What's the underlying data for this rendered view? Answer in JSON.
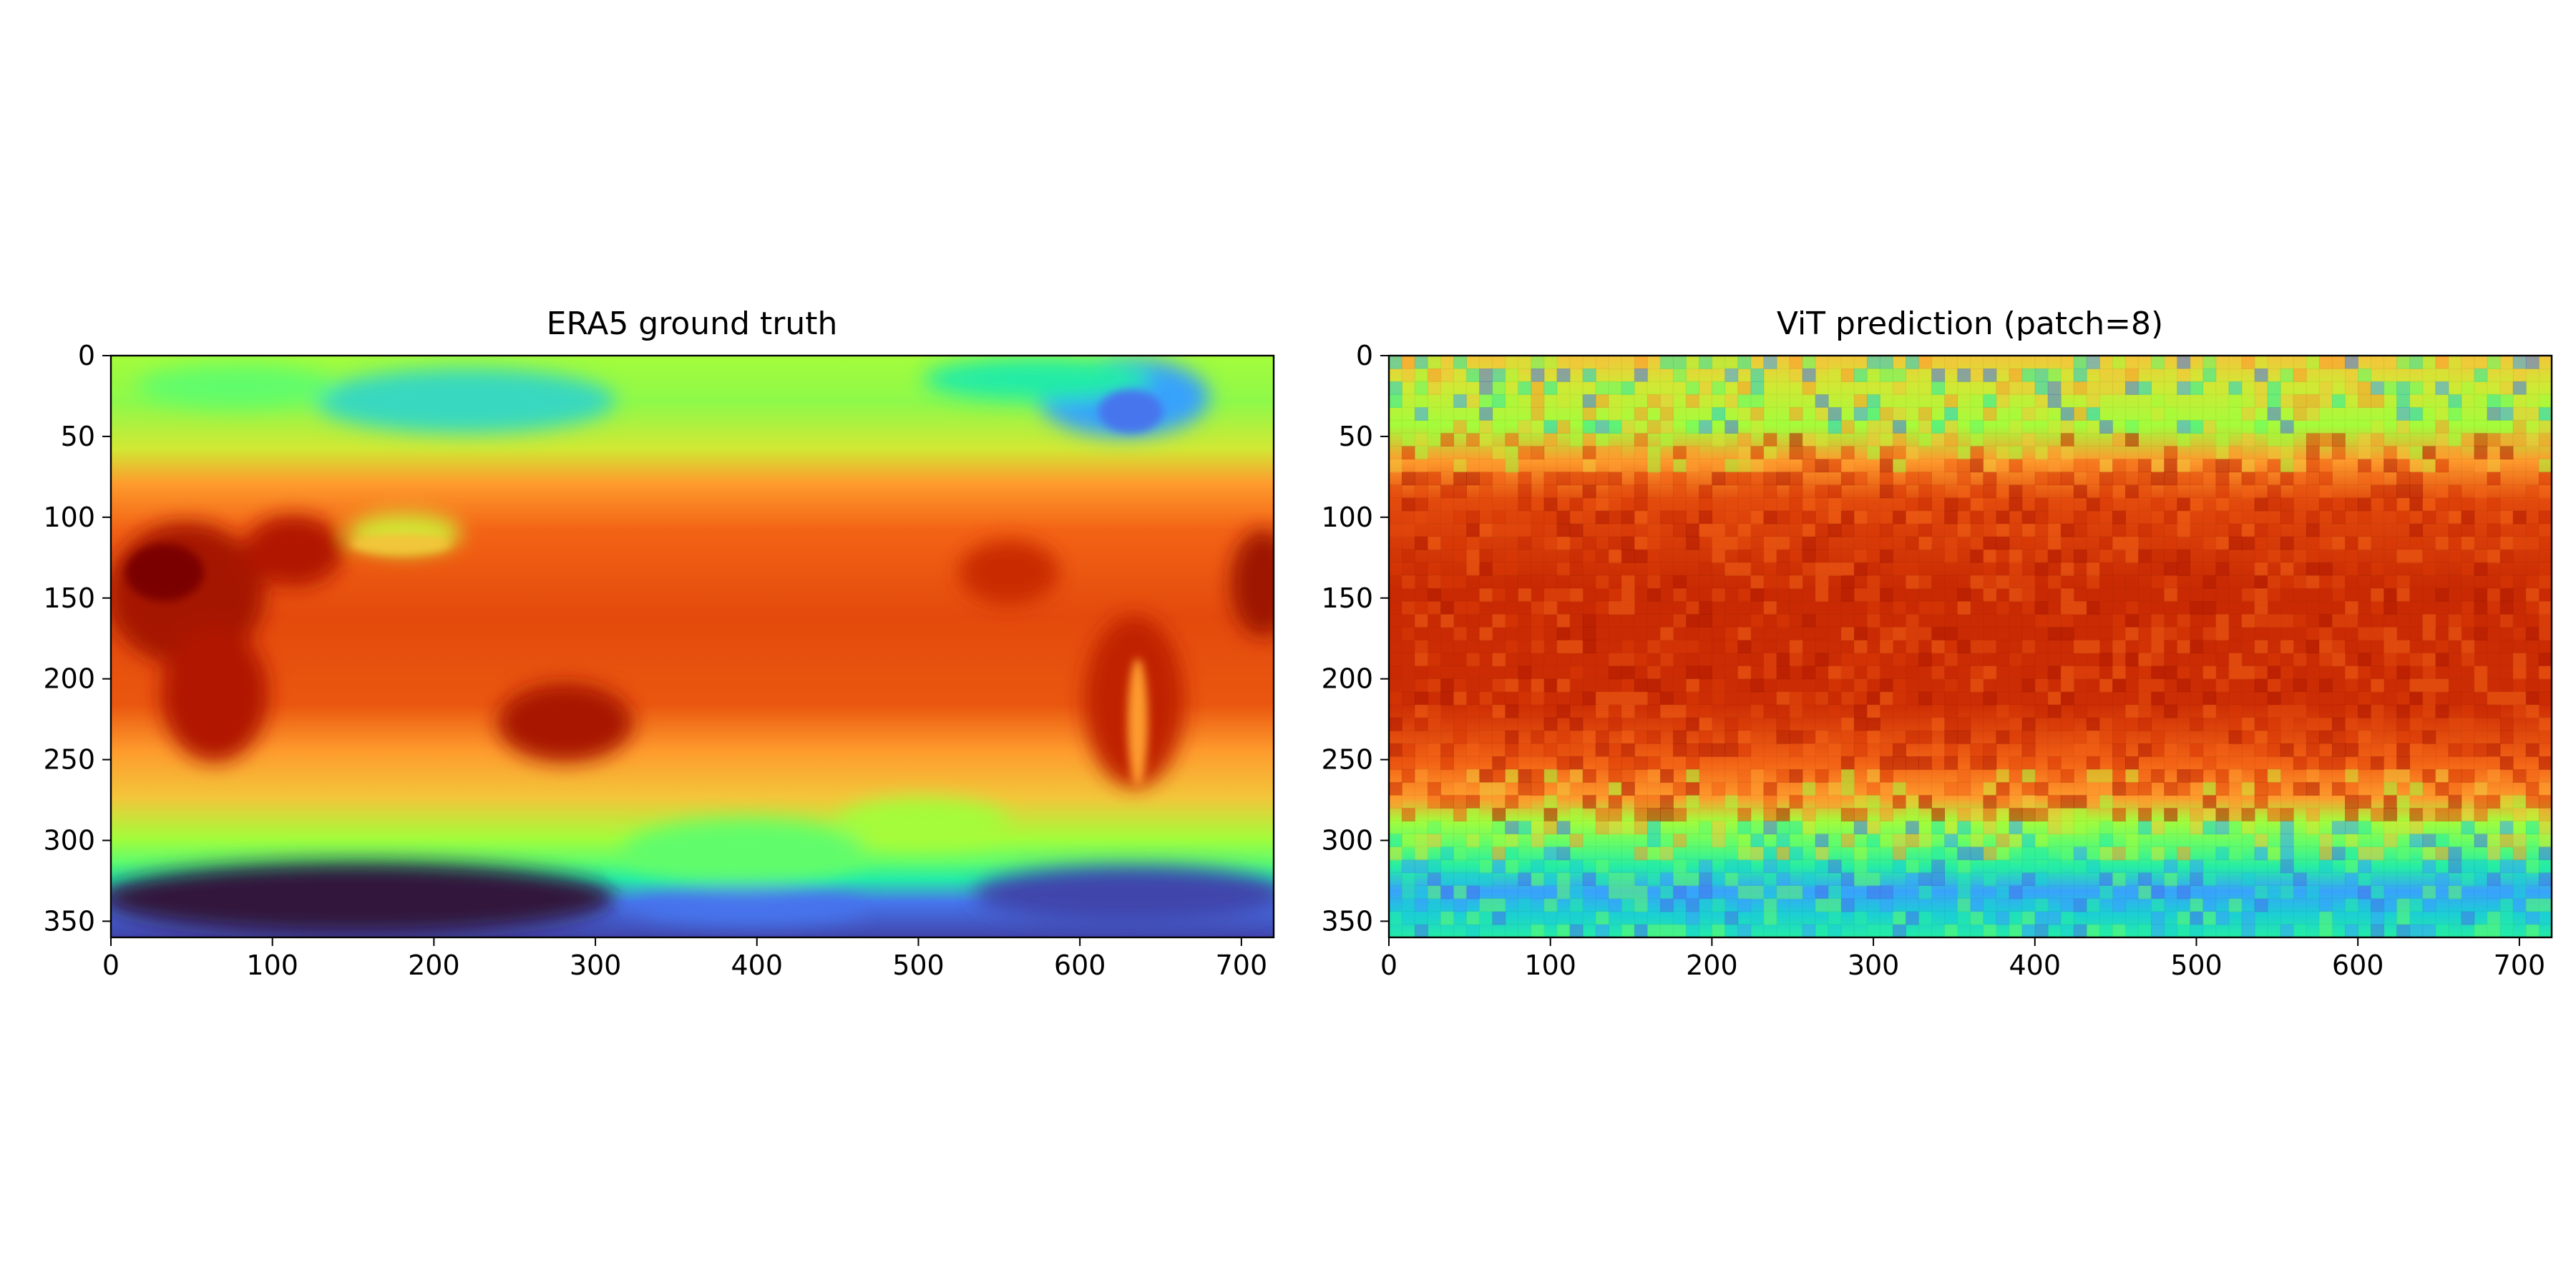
{
  "chart_data": [
    {
      "type": "heatmap",
      "title": "ERA5 ground truth",
      "xlim": [
        0,
        720
      ],
      "ylim": [
        360,
        0
      ],
      "x_ticks": [
        0,
        100,
        200,
        300,
        400,
        500,
        600,
        700
      ],
      "y_ticks": [
        0,
        50,
        100,
        150,
        200,
        250,
        300,
        350
      ],
      "colormap": "turbo",
      "grid": false,
      "field": "continuous global temperature field: coldest over Antarctica (rows ~320-360), cool over Arctic/Greenland (rows 0-50), warmest over Africa, India and Australia (rows 120-240); land outlines visible"
    },
    {
      "type": "heatmap",
      "title": "ViT prediction (patch=8)",
      "xlim": [
        0,
        720
      ],
      "ylim": [
        360,
        0
      ],
      "x_ticks": [
        0,
        100,
        200,
        300,
        400,
        500,
        600,
        700
      ],
      "y_ticks": [
        0,
        50,
        100,
        150,
        200,
        250,
        300,
        350
      ],
      "colormap": "turbo",
      "grid": false,
      "field": "blocky 8x8-pixel patch reconstruction of the same temperature field; warm tropical band rows ~80-260, cold polar bands rows ~300-360"
    }
  ],
  "colors": {
    "turbo": [
      "#30123b",
      "#4145ab",
      "#4675ed",
      "#39a2fc",
      "#1bcfd4",
      "#24eca6",
      "#61fc6c",
      "#a4fc3b",
      "#d1e834",
      "#f3c63a",
      "#fe9b2d",
      "#f36315",
      "#d93806",
      "#b11901",
      "#7a0402"
    ]
  }
}
